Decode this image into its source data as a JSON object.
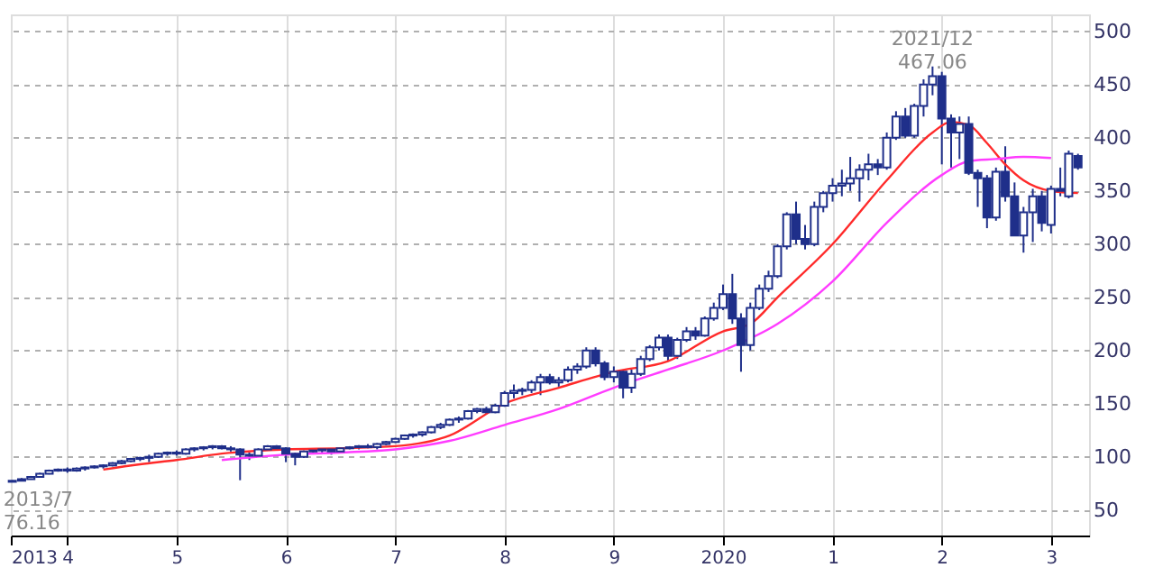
{
  "chart_data": {
    "type": "candlestick",
    "color": "#1f2f8a",
    "x": [
      "2013-07",
      "2013-08",
      "2013-09",
      "2013-10",
      "2013-11",
      "2013-12",
      "2014-01",
      "2014-02",
      "2014-03",
      "2014-04",
      "2014-05",
      "2014-06",
      "2014-07",
      "2014-08",
      "2014-09",
      "2014-10",
      "2014-11",
      "2014-12",
      "2015-01",
      "2015-02",
      "2015-03",
      "2015-04",
      "2015-05",
      "2015-06",
      "2015-07",
      "2015-08",
      "2015-09",
      "2015-10",
      "2015-11",
      "2015-12",
      "2016-01",
      "2016-02",
      "2016-03",
      "2016-04",
      "2016-05",
      "2016-06",
      "2016-07",
      "2016-08",
      "2016-09",
      "2016-10",
      "2016-11",
      "2016-12",
      "2017-01",
      "2017-02",
      "2017-03",
      "2017-04",
      "2017-05",
      "2017-06",
      "2017-07",
      "2017-08",
      "2017-09",
      "2017-10",
      "2017-11",
      "2017-12",
      "2018-01",
      "2018-02",
      "2018-03",
      "2018-04",
      "2018-05",
      "2018-06",
      "2018-07",
      "2018-08",
      "2018-09",
      "2018-10",
      "2018-11",
      "2018-12",
      "2019-01",
      "2019-02",
      "2019-03",
      "2019-04",
      "2019-05",
      "2019-06",
      "2019-07",
      "2019-08",
      "2019-09",
      "2019-10",
      "2019-11",
      "2019-12",
      "2020-01",
      "2020-02",
      "2020-03",
      "2020-04",
      "2020-05",
      "2020-06",
      "2020-07",
      "2020-08",
      "2020-09",
      "2020-10",
      "2020-11",
      "2020-12",
      "2021-01",
      "2021-02",
      "2021-03",
      "2021-04",
      "2021-05",
      "2021-06",
      "2021-07",
      "2021-08",
      "2021-09",
      "2021-10",
      "2021-11",
      "2021-12",
      "2022-01",
      "2022-02",
      "2022-03",
      "2022-04",
      "2022-05",
      "2022-06",
      "2022-07",
      "2022-08",
      "2022-09",
      "2022-10",
      "2022-11",
      "2022-12",
      "2023-01",
      "2023-02",
      "2023-03",
      "2023-04"
    ],
    "ohlc": [
      [
        76.5,
        78,
        76.16,
        77.5
      ],
      [
        77.5,
        80,
        77,
        79
      ],
      [
        79,
        82,
        78.5,
        81
      ],
      [
        81,
        85,
        80.5,
        84
      ],
      [
        84,
        88,
        83.5,
        87
      ],
      [
        87,
        89,
        86,
        88
      ],
      [
        88,
        90,
        85,
        87
      ],
      [
        87,
        90,
        86,
        89
      ],
      [
        89,
        91,
        87,
        90
      ],
      [
        90,
        92,
        89,
        91
      ],
      [
        91,
        93,
        89,
        92
      ],
      [
        92,
        95,
        91,
        94
      ],
      [
        94,
        97,
        93,
        96
      ],
      [
        96,
        99,
        95,
        98
      ],
      [
        98,
        100,
        96,
        99
      ],
      [
        99,
        102,
        95,
        100
      ],
      [
        100,
        104,
        99,
        103
      ],
      [
        103,
        105,
        101,
        104
      ],
      [
        104,
        106,
        101,
        103
      ],
      [
        103,
        108,
        102,
        107
      ],
      [
        107,
        109,
        105,
        108
      ],
      [
        108,
        110,
        106,
        109
      ],
      [
        109,
        111,
        107,
        110
      ],
      [
        110,
        111,
        107,
        108
      ],
      [
        108,
        110,
        105,
        107
      ],
      [
        107,
        108,
        78,
        102
      ],
      [
        102,
        104,
        97,
        101
      ],
      [
        101,
        108,
        100,
        107
      ],
      [
        107,
        111,
        106,
        110
      ],
      [
        110,
        111,
        106,
        108
      ],
      [
        108,
        109,
        95,
        103
      ],
      [
        103,
        104,
        92,
        100
      ],
      [
        100,
        106,
        99,
        105
      ],
      [
        105,
        107,
        103,
        106
      ],
      [
        106,
        108,
        104,
        107
      ],
      [
        107,
        108,
        102,
        105
      ],
      [
        105,
        109,
        104,
        108
      ],
      [
        108,
        110,
        107,
        109
      ],
      [
        109,
        111,
        107,
        110
      ],
      [
        110,
        112,
        108,
        109
      ],
      [
        109,
        113,
        107,
        112
      ],
      [
        112,
        115,
        111,
        114
      ],
      [
        114,
        118,
        113,
        117
      ],
      [
        117,
        121,
        116,
        120
      ],
      [
        120,
        122,
        118,
        121
      ],
      [
        121,
        124,
        119,
        123
      ],
      [
        123,
        129,
        122,
        128
      ],
      [
        128,
        132,
        126,
        130
      ],
      [
        130,
        136,
        129,
        135
      ],
      [
        135,
        138,
        132,
        136
      ],
      [
        136,
        144,
        135,
        143
      ],
      [
        143,
        146,
        141,
        145
      ],
      [
        145,
        147,
        140,
        142
      ],
      [
        142,
        150,
        141,
        148
      ],
      [
        148,
        162,
        147,
        160
      ],
      [
        160,
        168,
        155,
        162
      ],
      [
        162,
        165,
        158,
        163
      ],
      [
        163,
        172,
        160,
        170
      ],
      [
        170,
        178,
        158,
        175
      ],
      [
        175,
        178,
        168,
        170
      ],
      [
        170,
        175,
        166,
        172
      ],
      [
        172,
        185,
        170,
        182
      ],
      [
        182,
        188,
        178,
        185
      ],
      [
        185,
        203,
        183,
        200
      ],
      [
        200,
        203,
        185,
        188
      ],
      [
        188,
        190,
        172,
        175
      ],
      [
        175,
        185,
        170,
        180
      ],
      [
        180,
        182,
        155,
        165
      ],
      [
        165,
        182,
        160,
        178
      ],
      [
        178,
        195,
        176,
        192
      ],
      [
        192,
        205,
        190,
        203
      ],
      [
        203,
        215,
        200,
        212
      ],
      [
        212,
        215,
        190,
        195
      ],
      [
        195,
        212,
        192,
        210
      ],
      [
        210,
        222,
        208,
        218
      ],
      [
        218,
        222,
        210,
        214
      ],
      [
        214,
        232,
        213,
        230
      ],
      [
        230,
        245,
        228,
        240
      ],
      [
        240,
        262,
        238,
        253
      ],
      [
        253,
        272,
        225,
        230
      ],
      [
        230,
        235,
        180,
        205
      ],
      [
        205,
        245,
        200,
        240
      ],
      [
        240,
        262,
        238,
        258
      ],
      [
        258,
        275,
        255,
        270
      ],
      [
        270,
        300,
        268,
        298
      ],
      [
        298,
        330,
        295,
        328
      ],
      [
        328,
        340,
        300,
        305
      ],
      [
        305,
        318,
        295,
        300
      ],
      [
        300,
        340,
        298,
        335
      ],
      [
        335,
        350,
        330,
        348
      ],
      [
        348,
        362,
        340,
        355
      ],
      [
        355,
        370,
        345,
        357
      ],
      [
        357,
        382,
        350,
        362
      ],
      [
        362,
        375,
        340,
        370
      ],
      [
        370,
        385,
        360,
        375
      ],
      [
        375,
        380,
        365,
        372
      ],
      [
        372,
        405,
        370,
        400
      ],
      [
        400,
        425,
        398,
        420
      ],
      [
        420,
        428,
        400,
        402
      ],
      [
        402,
        432,
        400,
        430
      ],
      [
        430,
        455,
        420,
        450
      ],
      [
        450,
        467.06,
        440,
        458
      ],
      [
        458,
        462,
        375,
        418
      ],
      [
        418,
        422,
        372,
        405
      ],
      [
        405,
        420,
        380,
        413
      ],
      [
        413,
        420,
        365,
        367
      ],
      [
        367,
        370,
        335,
        362
      ],
      [
        362,
        365,
        315,
        325
      ],
      [
        325,
        372,
        322,
        368
      ],
      [
        368,
        392,
        340,
        345
      ],
      [
        345,
        358,
        308,
        308
      ],
      [
        308,
        335,
        292,
        330
      ],
      [
        330,
        352,
        302,
        345
      ],
      [
        345,
        350,
        312,
        320
      ],
      [
        318,
        355,
        310,
        352
      ],
      [
        352,
        372,
        345,
        350
      ],
      [
        345,
        388,
        343,
        385
      ],
      [
        383,
        385,
        370,
        372
      ]
    ],
    "series": [
      {
        "type": "line",
        "color": "#ff2a2a",
        "x": [
          "2014-05",
          "2014-09",
          "2015-01",
          "2015-06",
          "2016-01",
          "2016-07",
          "2017-01",
          "2017-07",
          "2018-01",
          "2018-07",
          "2019-01",
          "2019-07",
          "2020-01",
          "2020-04",
          "2020-07",
          "2021-01",
          "2021-07",
          "2021-12",
          "2022-02",
          "2022-04",
          "2022-06",
          "2022-08",
          "2022-10",
          "2023-01",
          "2023-04"
        ],
        "values": [
          88,
          93,
          97,
          103,
          107,
          108,
          110,
          120,
          150,
          165,
          180,
          190,
          218,
          225,
          250,
          300,
          360,
          405,
          415,
          412,
          395,
          375,
          360,
          350,
          348
        ]
      },
      {
        "type": "line",
        "color": "#ff3cff",
        "x": [
          "2015-06",
          "2016-01",
          "2016-07",
          "2017-01",
          "2017-07",
          "2018-01",
          "2018-07",
          "2019-01",
          "2019-07",
          "2020-01",
          "2020-07",
          "2021-01",
          "2021-07",
          "2022-01",
          "2022-04",
          "2022-07",
          "2022-10",
          "2023-01"
        ],
        "values": [
          97,
          102,
          104,
          107,
          115,
          130,
          145,
          165,
          182,
          200,
          225,
          265,
          320,
          365,
          378,
          380,
          382,
          381
        ]
      }
    ],
    "xlim": [
      "2013-06-26",
      "2023-05-08"
    ],
    "xticks": [
      {
        "value": "2013-06-26",
        "label": "2013"
      },
      {
        "value": "2014-01-01",
        "label": "4"
      },
      {
        "value": "2015-01-01",
        "label": "5"
      },
      {
        "value": "2016-01-01",
        "label": "6"
      },
      {
        "value": "2017-01-01",
        "label": "7"
      },
      {
        "value": "2018-01-01",
        "label": "8"
      },
      {
        "value": "2019-01-01",
        "label": "9"
      },
      {
        "value": "2020-01-01",
        "label": "2020"
      },
      {
        "value": "2021-01-01",
        "label": "1"
      },
      {
        "value": "2022-01-01",
        "label": "2"
      },
      {
        "value": "2023-01-01",
        "label": "3"
      }
    ],
    "ylim": [
      26,
      516
    ],
    "yticks": [
      50,
      100,
      150,
      200,
      250,
      300,
      350,
      400,
      450,
      500
    ],
    "grid": true,
    "annotations": [
      {
        "text": "2021/12\n467.06",
        "x": "2021-12",
        "y": 467.06
      },
      {
        "text": "2013/7\n76.16",
        "x": "2013-07",
        "y": 76.16
      }
    ]
  }
}
